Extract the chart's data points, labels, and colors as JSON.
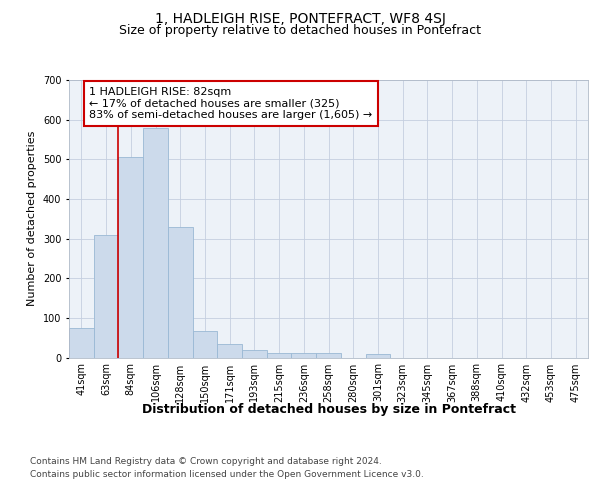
{
  "title": "1, HADLEIGH RISE, PONTEFRACT, WF8 4SJ",
  "subtitle": "Size of property relative to detached houses in Pontefract",
  "xlabel": "Distribution of detached houses by size in Pontefract",
  "ylabel": "Number of detached properties",
  "bar_color": "#ccdaeb",
  "bar_edge_color": "#9ab8d4",
  "categories": [
    "41sqm",
    "63sqm",
    "84sqm",
    "106sqm",
    "128sqm",
    "150sqm",
    "171sqm",
    "193sqm",
    "215sqm",
    "236sqm",
    "258sqm",
    "280sqm",
    "301sqm",
    "323sqm",
    "345sqm",
    "367sqm",
    "388sqm",
    "410sqm",
    "432sqm",
    "453sqm",
    "475sqm"
  ],
  "values": [
    75,
    310,
    505,
    580,
    330,
    68,
    35,
    18,
    12,
    11,
    11,
    0,
    8,
    0,
    0,
    0,
    0,
    0,
    0,
    0,
    0
  ],
  "ylim": [
    0,
    700
  ],
  "yticks": [
    0,
    100,
    200,
    300,
    400,
    500,
    600,
    700
  ],
  "vline_x_index": 2,
  "annotation_text": "1 HADLEIGH RISE: 82sqm\n← 17% of detached houses are smaller (325)\n83% of semi-detached houses are larger (1,605) →",
  "annotation_box_facecolor": "#ffffff",
  "annotation_box_edgecolor": "#cc0000",
  "vline_color": "#cc0000",
  "footer_line1": "Contains HM Land Registry data © Crown copyright and database right 2024.",
  "footer_line2": "Contains public sector information licensed under the Open Government Licence v3.0.",
  "bg_color": "#edf2f8",
  "grid_color": "#c5cfe0",
  "title_fontsize": 10,
  "subtitle_fontsize": 9,
  "xlabel_fontsize": 9,
  "ylabel_fontsize": 8,
  "tick_fontsize": 7,
  "annotation_fontsize": 8,
  "footer_fontsize": 6.5
}
